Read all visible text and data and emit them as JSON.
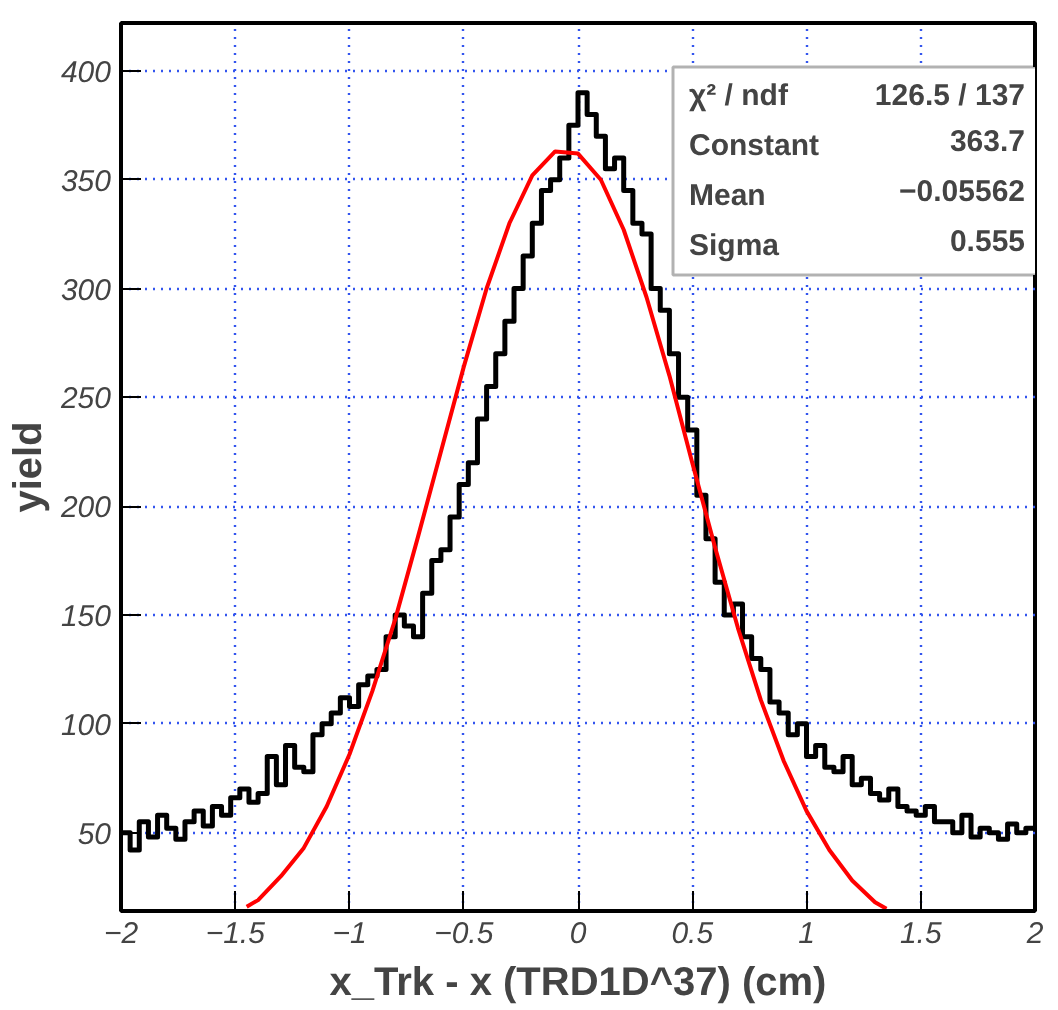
{
  "chart_data": {
    "type": "histogram",
    "xlabel": "x_Trk - x (TRD1D^37) (cm)",
    "ylabel": "yield",
    "bins": [
      -2.0,
      -1.96,
      -1.92,
      -1.88,
      -1.84,
      -1.8,
      -1.76,
      -1.72,
      -1.68,
      -1.64,
      -1.6,
      -1.56,
      -1.52,
      -1.48,
      -1.44,
      -1.4,
      -1.36,
      -1.32,
      -1.28,
      -1.24,
      -1.2,
      -1.16,
      -1.12,
      -1.08,
      -1.04,
      -1.0,
      -0.96,
      -0.92,
      -0.88,
      -0.84,
      -0.8,
      -0.76,
      -0.72,
      -0.68,
      -0.64,
      -0.6,
      -0.56,
      -0.52,
      -0.48,
      -0.44,
      -0.4,
      -0.36,
      -0.32,
      -0.28,
      -0.24,
      -0.2,
      -0.16,
      -0.12,
      -0.08,
      -0.04,
      0.0,
      0.04,
      0.08,
      0.12,
      0.16,
      0.2,
      0.24,
      0.28,
      0.32,
      0.36,
      0.4,
      0.44,
      0.48,
      0.52,
      0.56,
      0.6,
      0.64,
      0.68,
      0.72,
      0.76,
      0.8,
      0.84,
      0.88,
      0.92,
      0.96,
      1.0,
      1.04,
      1.08,
      1.12,
      1.16,
      1.2,
      1.24,
      1.28,
      1.32,
      1.36,
      1.4,
      1.44,
      1.48,
      1.52,
      1.56,
      1.6,
      1.64,
      1.68,
      1.72,
      1.76,
      1.8,
      1.84,
      1.88,
      1.92,
      1.96,
      2.0
    ],
    "series": [
      {
        "color": "#000000",
        "values": [
          50,
          42,
          55,
          48,
          58,
          52,
          47,
          55,
          60,
          53,
          62,
          58,
          66,
          70,
          64,
          68,
          85,
          72,
          90,
          80,
          78,
          95,
          100,
          105,
          112,
          108,
          118,
          122,
          125,
          140,
          150,
          145,
          140,
          160,
          175,
          180,
          195,
          210,
          220,
          240,
          255,
          270,
          285,
          300,
          315,
          330,
          345,
          350,
          360,
          375,
          390,
          380,
          370,
          355,
          360,
          345,
          330,
          325,
          300,
          290,
          270,
          250,
          235,
          205,
          185,
          165,
          150,
          155,
          140,
          130,
          125,
          110,
          105,
          95,
          100,
          85,
          90,
          80,
          78,
          85,
          72,
          75,
          68,
          65,
          70,
          62,
          60,
          58,
          62,
          55,
          55,
          50,
          58,
          48,
          52,
          50,
          47,
          54,
          50,
          52
        ]
      },
      {
        "type": "line",
        "color": "#ff0000",
        "x": [
          -1.45,
          -1.4,
          -1.3,
          -1.2,
          -1.1,
          -1.0,
          -0.9,
          -0.8,
          -0.7,
          -0.6,
          -0.5,
          -0.4,
          -0.3,
          -0.2,
          -0.1,
          0.0,
          0.1,
          0.2,
          0.3,
          0.4,
          0.5,
          0.6,
          0.7,
          0.8,
          0.9,
          1.0,
          1.1,
          1.2,
          1.3,
          1.35
        ],
        "values": [
          16,
          19,
          30,
          43,
          62,
          86,
          115,
          148,
          186,
          225,
          264,
          300,
          330,
          352,
          363,
          362,
          350,
          327,
          296,
          260,
          220,
          181,
          144,
          111,
          83,
          60,
          42,
          28,
          18,
          15
        ]
      }
    ],
    "xlim": [
      -2,
      2
    ],
    "ylim": [
      14,
      422
    ],
    "xticks": [
      {
        "value": -2,
        "label": "−2"
      },
      {
        "value": -1.5,
        "label": "−1.5"
      },
      {
        "value": -1,
        "label": "−1"
      },
      {
        "value": -0.5,
        "label": "−0.5"
      },
      0,
      0.5,
      1,
      1.5,
      2
    ],
    "yticks": [
      50,
      100,
      150,
      200,
      250,
      300,
      350,
      400
    ],
    "grid": true,
    "annotations": [
      "χ² / ndf",
      "126.5 / 137",
      "Constant",
      "363.7",
      "Mean",
      "−0.05562",
      "Sigma",
      "0.555"
    ]
  }
}
